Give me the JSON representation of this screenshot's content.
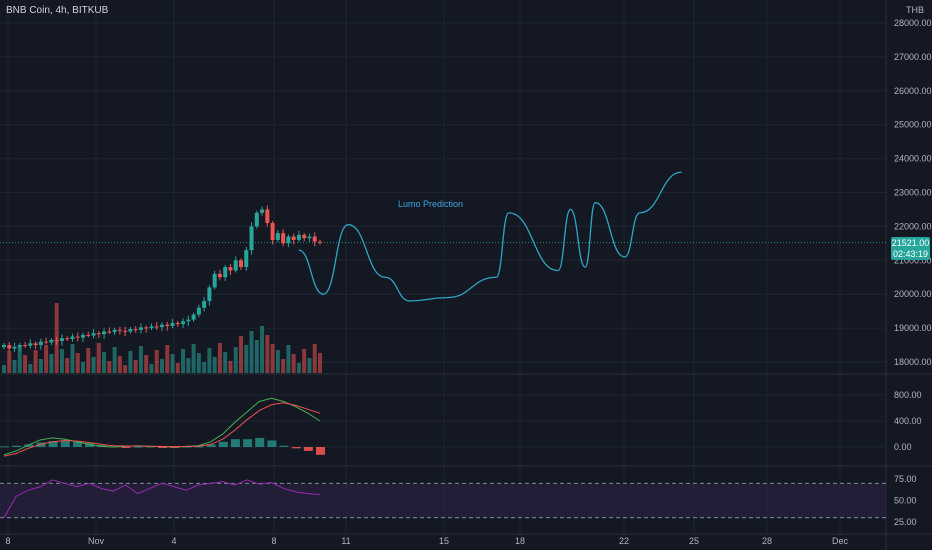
{
  "header": {
    "title": "BNB Coin, 4h, BITKUB",
    "currency": "THB"
  },
  "price_badge": {
    "price": "21521.00",
    "countdown": "02:43:19"
  },
  "annotation": "Lumo Prediction",
  "colors": {
    "background": "#141823",
    "grid": "#1e2433",
    "up": "#26a69a",
    "down": "#ef5350",
    "prediction": "#2fa4c4",
    "macd_line": "#4caf50",
    "signal_line": "#ef5350",
    "rsi": "#9c27b0",
    "rsi_band": "#2a2140"
  },
  "chart_data": [
    {
      "name": "price",
      "type": "candlestick",
      "y_axis_ticks": [
        28000,
        27000,
        26000,
        25000,
        24000,
        23000,
        22000,
        21000,
        20000,
        19000,
        18000
      ],
      "y_axis_labels": [
        "28000.00",
        "27000.00",
        "26000.00",
        "25000.00",
        "24000.00",
        "23000.00",
        "22000.00",
        "21000.00",
        "20000.00",
        "19000.00",
        "18000.00"
      ],
      "ylim": [
        17700,
        28400
      ],
      "x_axis_labels": [
        "8",
        "Nov",
        "4",
        "8",
        "11",
        "15",
        "18",
        "22",
        "25",
        "28",
        "Dec"
      ],
      "last_price": 21521,
      "closes": [
        18500,
        18400,
        18450,
        18500,
        18480,
        18550,
        18500,
        18600,
        18580,
        18650,
        18620,
        18700,
        18680,
        18750,
        18720,
        18800,
        18780,
        18850,
        18820,
        18900,
        18880,
        18950,
        18920,
        18900,
        18970,
        18950,
        19020,
        19000,
        19050,
        19030,
        19100,
        19060,
        19150,
        19120,
        19200,
        19250,
        19400,
        19600,
        19800,
        20200,
        20600,
        20500,
        20800,
        20700,
        21000,
        20800,
        21300,
        22000,
        22400,
        22500,
        22100,
        21600,
        21800,
        21500,
        21700,
        21600,
        21750,
        21650,
        21700,
        21550,
        21521
      ],
      "prediction": [
        {
          "x": "Nov 9",
          "y": 21300
        },
        {
          "x": "Nov 10",
          "y": 20000
        },
        {
          "x": "Nov 11",
          "y": 22050
        },
        {
          "x": "Nov 12.5",
          "y": 20500
        },
        {
          "x": "Nov 13.5",
          "y": 19800
        },
        {
          "x": "Nov 15",
          "y": 19900
        },
        {
          "x": "Nov 17",
          "y": 20500
        },
        {
          "x": "Nov 17.5",
          "y": 22400
        },
        {
          "x": "Nov 19.5",
          "y": 20700
        },
        {
          "x": "Nov 20",
          "y": 22500
        },
        {
          "x": "Nov 20.6",
          "y": 20800
        },
        {
          "x": "Nov 21",
          "y": 22700
        },
        {
          "x": "Nov 22.2",
          "y": 21100
        },
        {
          "x": "Nov 22.8",
          "y": 22400
        },
        {
          "x": "Nov 24.5",
          "y": 23600
        }
      ]
    },
    {
      "name": "macd",
      "type": "line",
      "y_axis_labels": [
        "800.00",
        "400.00",
        "0.00"
      ],
      "ylim": [
        -250,
        1000
      ],
      "series": [
        {
          "key": "macd",
          "values": [
            -120,
            -60,
            30,
            110,
            140,
            120,
            80,
            40,
            10,
            0,
            10,
            20,
            10,
            5,
            0,
            10,
            20,
            80,
            200,
            380,
            540,
            700,
            750,
            700,
            620,
            520,
            400
          ]
        },
        {
          "key": "signal",
          "values": [
            -140,
            -100,
            -20,
            40,
            80,
            100,
            90,
            70,
            40,
            20,
            15,
            15,
            12,
            10,
            5,
            8,
            12,
            40,
            120,
            260,
            420,
            560,
            650,
            680,
            640,
            580,
            520
          ]
        }
      ],
      "histogram": [
        10,
        20,
        40,
        70,
        90,
        100,
        80,
        60,
        30,
        10,
        -10,
        5,
        8,
        -5,
        -5,
        5,
        8,
        40,
        80,
        120,
        120,
        140,
        100,
        20,
        -20,
        -60,
        -120
      ]
    },
    {
      "name": "rsi",
      "type": "line",
      "y_axis_labels": [
        "75.00",
        "50.00",
        "25.00"
      ],
      "ylim": [
        20,
        80
      ],
      "band": [
        30,
        70
      ],
      "values": [
        30,
        55,
        62,
        66,
        74,
        70,
        66,
        70,
        64,
        61,
        68,
        58,
        64,
        70,
        66,
        62,
        68,
        70,
        72,
        68,
        74,
        69,
        71,
        64,
        60,
        58,
        57
      ]
    }
  ]
}
